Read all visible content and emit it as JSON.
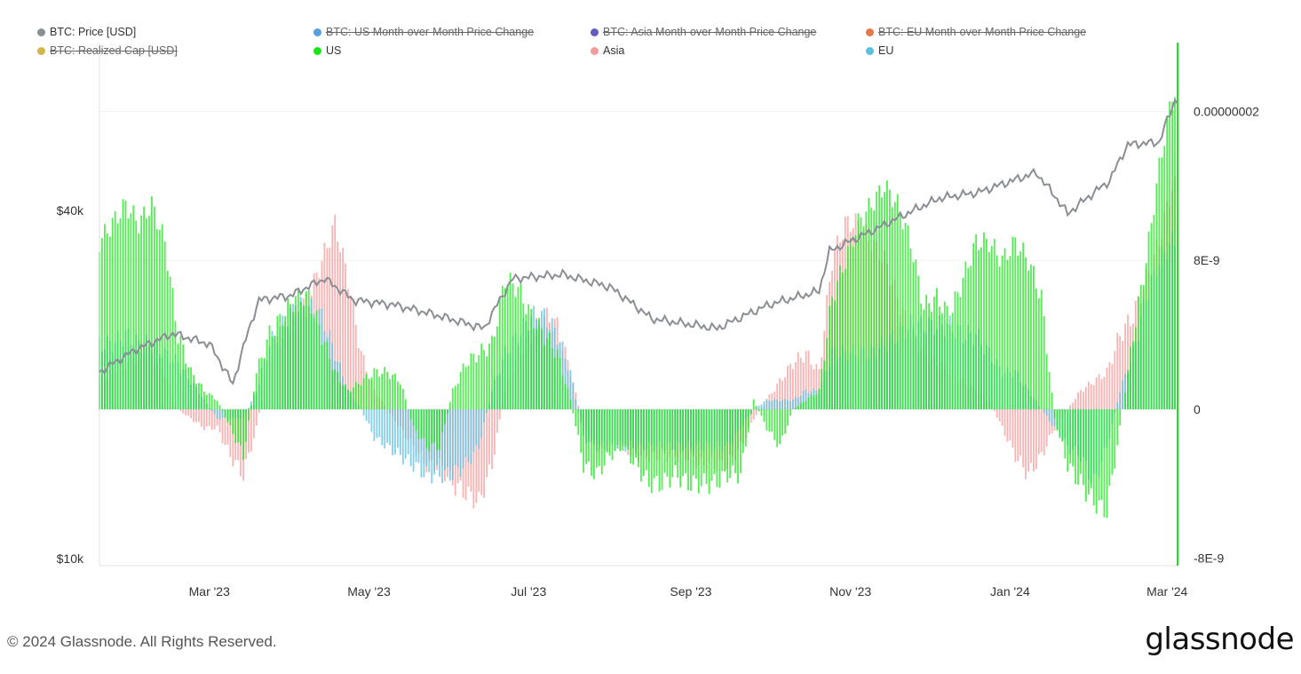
{
  "legend": [
    {
      "label": "BTC: Price [USD]",
      "color": "#8a8f96",
      "hidden": false
    },
    {
      "label": "BTC: US Month-over-Month Price Change",
      "color": "#3a8fd8",
      "hidden": true
    },
    {
      "label": "BTC: Asia Month-over-Month Price Change",
      "color": "#4b3fb0",
      "hidden": true
    },
    {
      "label": "BTC: EU Month-over-Month Price Change",
      "color": "#e0622a",
      "hidden": true
    },
    {
      "label": "BTC: Realized Cap [USD]",
      "color": "#c9a92c",
      "hidden": true
    },
    {
      "label": "US",
      "color": "#19e619",
      "hidden": false
    },
    {
      "label": "Asia",
      "color": "#f59a9a",
      "hidden": false
    },
    {
      "label": "EU",
      "color": "#5bbfe0",
      "hidden": false
    }
  ],
  "footer": {
    "copyright": "© 2024 Glassnode. All Rights Reserved.",
    "logo": "glassnode"
  },
  "chart_data": {
    "type": "bar",
    "title": "",
    "x_start": "2023-01-18",
    "x_end": "2024-03-05",
    "sample_step_days": 5,
    "x_ticks": [
      {
        "date": "2023-03-01",
        "label": "Mar '23"
      },
      {
        "date": "2023-05-01",
        "label": "May '23"
      },
      {
        "date": "2023-07-01",
        "label": "Jul '23"
      },
      {
        "date": "2023-09-01",
        "label": "Sep '23"
      },
      {
        "date": "2023-11-01",
        "label": "Nov '23"
      },
      {
        "date": "2024-01-01",
        "label": "Jan '24"
      },
      {
        "date": "2024-03-01",
        "label": "Mar '24"
      }
    ],
    "left_axis": {
      "scale": "log",
      "unit": "USD",
      "ticks": [
        {
          "value": 10000,
          "label": "$10k"
        },
        {
          "value": 40000,
          "label": "$40k"
        }
      ]
    },
    "right_axis": {
      "scale": "linear",
      "ylim": [
        -8.4e-09,
        1.97e-08
      ],
      "ticks": [
        {
          "value": -8e-09,
          "label": "-8E-9"
        },
        {
          "value": 0,
          "label": "0"
        },
        {
          "value": 8e-09,
          "label": "8E-9"
        },
        {
          "value": 1.6e-08,
          "label": "0.00000002"
        }
      ]
    },
    "price_series": {
      "name": "BTC: Price [USD]",
      "points": [
        [
          "2023-01-18",
          21000
        ],
        [
          "2023-02-01",
          23000
        ],
        [
          "2023-02-15",
          24500
        ],
        [
          "2023-03-01",
          23500
        ],
        [
          "2023-03-10",
          20000
        ],
        [
          "2023-03-20",
          28000
        ],
        [
          "2023-04-01",
          28500
        ],
        [
          "2023-04-14",
          30500
        ],
        [
          "2023-04-25",
          28000
        ],
        [
          "2023-05-10",
          27500
        ],
        [
          "2023-05-25",
          26500
        ],
        [
          "2023-06-14",
          25000
        ],
        [
          "2023-06-25",
          30500
        ],
        [
          "2023-07-14",
          31000
        ],
        [
          "2023-08-01",
          29500
        ],
        [
          "2023-08-17",
          26000
        ],
        [
          "2023-09-11",
          25000
        ],
        [
          "2023-10-01",
          27500
        ],
        [
          "2023-10-20",
          29000
        ],
        [
          "2023-10-24",
          34000
        ],
        [
          "2023-11-10",
          37000
        ],
        [
          "2023-12-05",
          42000
        ],
        [
          "2023-12-20",
          43000
        ],
        [
          "2024-01-11",
          46500
        ],
        [
          "2024-01-23",
          39500
        ],
        [
          "2024-02-08",
          45000
        ],
        [
          "2024-02-15",
          52000
        ],
        [
          "2024-02-27",
          52500
        ],
        [
          "2024-03-04",
          62000
        ]
      ]
    },
    "value_unit": "1e-9",
    "series": [
      {
        "name": "Asia",
        "color": "#f59a9a",
        "values": [
          1.5,
          2,
          2.5,
          3,
          3,
          2,
          0,
          -0.5,
          -1,
          -1,
          -2.5,
          -3.5,
          -1,
          3,
          4,
          5,
          6,
          8,
          10,
          7,
          3,
          1,
          0,
          -1,
          -2,
          -3,
          -3,
          -4,
          -4.5,
          -5,
          -3,
          1,
          3,
          4,
          5,
          4.5,
          2,
          -1,
          -2,
          -2,
          -2,
          -2.5,
          -2.5,
          -2.5,
          -2.5,
          -2.5,
          -3,
          -3,
          -3,
          -2,
          -0.5,
          0.5,
          1.5,
          2.5,
          3,
          2,
          8,
          10,
          10,
          9,
          8,
          6,
          4,
          3,
          2.5,
          2,
          1.5,
          1,
          0.5,
          -1,
          -2.5,
          -3.5,
          -2.5,
          -1,
          0,
          1,
          1.5,
          2,
          4,
          5,
          7,
          9,
          12
        ]
      },
      {
        "name": "EU",
        "color": "#5bbfe0",
        "values": [
          3.5,
          3.5,
          4,
          3.5,
          3.5,
          3,
          2.5,
          1.5,
          0.5,
          -0.5,
          -0.5,
          -0.5,
          1,
          3.5,
          4.5,
          5.5,
          5.5,
          5,
          3,
          1,
          0,
          -1.5,
          -2,
          -2.5,
          -3,
          -3.5,
          -3.5,
          -3.5,
          -3,
          -2,
          1,
          3,
          4,
          5,
          5,
          4,
          2,
          -1.5,
          -2,
          -2,
          -2,
          -2,
          -2,
          -2,
          -2,
          -2,
          -2,
          -2,
          -2,
          -1,
          0,
          0.5,
          0.5,
          0.5,
          1,
          1,
          3,
          3,
          3,
          3,
          3.5,
          4,
          4.5,
          4.5,
          4.5,
          4.5,
          4,
          4,
          3,
          2,
          2,
          1,
          0,
          -1,
          -2,
          -2.5,
          -4,
          -2,
          1,
          3,
          6,
          8,
          9
        ]
      },
      {
        "name": "US",
        "color": "#19e619",
        "values": [
          9,
          10,
          11,
          10,
          11,
          9,
          4,
          2,
          1,
          0.5,
          -1,
          -2.5,
          2,
          4,
          5,
          6,
          6,
          4,
          2,
          1,
          1.5,
          2,
          2,
          1.5,
          -1,
          -2,
          -2,
          1,
          2.5,
          3,
          3.5,
          7,
          6.5,
          5,
          4,
          3,
          0.5,
          -3,
          -3.5,
          -2.5,
          -2,
          -3,
          -4,
          -4,
          -3.5,
          -4,
          -4,
          -4,
          -3.5,
          -3.5,
          0.5,
          -1,
          -2,
          0,
          0.5,
          1,
          6,
          8,
          10,
          11,
          12,
          11,
          9,
          5.5,
          6,
          5,
          7,
          9,
          9,
          8,
          9,
          8,
          6,
          -0.5,
          -3,
          -4,
          -5,
          -5.5,
          -1,
          4,
          8,
          13,
          17
        ]
      }
    ]
  }
}
